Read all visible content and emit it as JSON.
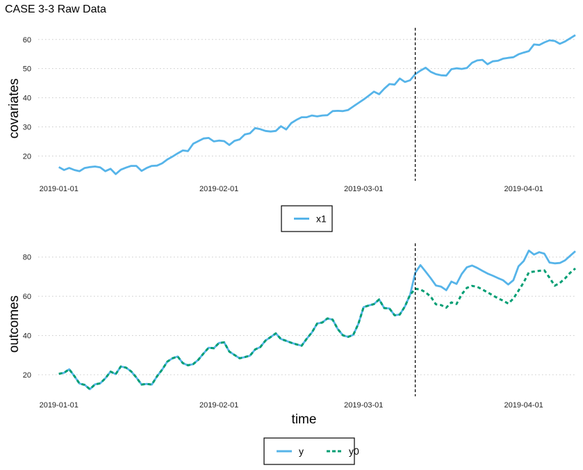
{
  "title": "CASE 3-3 Raw Data",
  "colors": {
    "x1": "#56B4E9",
    "y": "#56B4E9",
    "y0": "#009E73",
    "intervention": "#000000"
  },
  "chart_data": [
    {
      "type": "line",
      "ylabel": "covariates",
      "xlabel": "",
      "x_ticks": [
        "2019-01-01",
        "2019-02-01",
        "2019-03-01",
        "2019-04-01"
      ],
      "y_ticks": [
        20,
        30,
        40,
        50,
        60
      ],
      "ylim": [
        11.5,
        64
      ],
      "xlim": [
        "2018-12-28",
        "2019-04-11"
      ],
      "grid": "horizontal dotted",
      "intervention_date": "2019-03-11",
      "x": {
        "start": "2019-01-01",
        "end": "2019-04-09",
        "step_days": 1
      },
      "series": [
        {
          "name": "x1",
          "style": "solid",
          "values": [
            16.2,
            15.2,
            15.9,
            15.2,
            14.8,
            15.9,
            16.2,
            16.4,
            16.1,
            14.8,
            15.6,
            13.8,
            15.3,
            16.0,
            16.6,
            16.6,
            14.9,
            15.9,
            16.6,
            16.7,
            17.5,
            18.8,
            19.8,
            20.9,
            21.9,
            21.7,
            24.2,
            25.1,
            26.0,
            26.2,
            25.0,
            25.3,
            25.1,
            23.8,
            25.2,
            25.7,
            27.4,
            27.8,
            29.6,
            29.2,
            28.6,
            28.4,
            28.6,
            30.2,
            29.1,
            31.3,
            32.4,
            33.3,
            33.3,
            33.9,
            33.6,
            33.9,
            34.0,
            35.4,
            35.5,
            35.4,
            35.8,
            37.0,
            38.2,
            39.4,
            40.7,
            42.1,
            41.2,
            43.1,
            44.7,
            44.5,
            46.6,
            45.4,
            46.0,
            48.1,
            49.3,
            50.3,
            48.9,
            48.1,
            47.7,
            47.6,
            49.8,
            50.1,
            49.9,
            50.2,
            52.0,
            52.8,
            53.0,
            51.5,
            52.5,
            52.7,
            53.4,
            53.7,
            53.9,
            54.9,
            55.5,
            56.0,
            58.3,
            58.1,
            59.0,
            59.7,
            59.5,
            58.5,
            59.3,
            60.4,
            61.5
          ]
        }
      ]
    },
    {
      "type": "line",
      "ylabel": "outcomes",
      "xlabel": "time",
      "x_ticks": [
        "2019-01-01",
        "2019-02-01",
        "2019-03-01",
        "2019-04-01"
      ],
      "y_ticks": [
        20,
        40,
        60,
        80
      ],
      "ylim": [
        9,
        87
      ],
      "xlim": [
        "2018-12-28",
        "2019-04-11"
      ],
      "grid": "horizontal dotted",
      "intervention_date": "2019-03-11",
      "x": {
        "start": "2019-01-01",
        "end": "2019-04-09",
        "step_days": 1
      },
      "series": [
        {
          "name": "y",
          "style": "solid",
          "values": [
            20.5,
            21.0,
            22.8,
            19.3,
            15.5,
            14.8,
            12.6,
            15.1,
            15.6,
            18.2,
            21.6,
            20.3,
            24.2,
            23.6,
            21.7,
            18.6,
            15.0,
            15.3,
            15.0,
            19.2,
            22.6,
            26.7,
            28.4,
            29.3,
            25.9,
            24.8,
            25.4,
            27.6,
            30.8,
            33.8,
            33.5,
            36.2,
            36.5,
            31.8,
            30.1,
            28.4,
            29.0,
            29.7,
            32.9,
            34.1,
            37.4,
            39.2,
            41.1,
            38.2,
            37.3,
            36.3,
            35.5,
            34.8,
            38.4,
            41.6,
            46.1,
            46.6,
            48.7,
            48.1,
            43.3,
            40.1,
            39.3,
            40.3,
            46.0,
            54.5,
            55.3,
            56.0,
            58.4,
            54.0,
            53.8,
            50.3,
            50.7,
            54.8,
            60.8,
            72.0,
            75.9,
            72.6,
            69.2,
            65.5,
            64.9,
            63.1,
            67.5,
            66.3,
            71.4,
            74.8,
            75.7,
            74.5,
            73.0,
            71.6,
            70.5,
            69.3,
            68.2,
            66.0,
            68.2,
            75.3,
            78.0,
            83.3,
            81.3,
            82.5,
            81.7,
            77.2,
            76.8,
            77.0,
            78.3,
            80.7,
            83.0
          ]
        },
        {
          "name": "y0",
          "style": "dashed",
          "values": [
            20.5,
            21.0,
            22.8,
            19.3,
            15.5,
            14.8,
            12.6,
            15.1,
            15.6,
            18.2,
            21.6,
            20.3,
            24.2,
            23.6,
            21.7,
            18.6,
            15.0,
            15.3,
            15.0,
            19.2,
            22.6,
            26.7,
            28.4,
            29.3,
            25.9,
            24.8,
            25.4,
            27.6,
            30.8,
            33.8,
            33.5,
            36.2,
            36.5,
            31.8,
            30.1,
            28.4,
            29.0,
            29.7,
            32.9,
            34.1,
            37.4,
            39.2,
            41.1,
            38.2,
            37.3,
            36.3,
            35.5,
            34.8,
            38.4,
            41.6,
            46.1,
            46.6,
            48.7,
            48.1,
            43.3,
            40.1,
            39.3,
            40.3,
            46.0,
            54.5,
            55.3,
            56.0,
            58.4,
            54.0,
            53.8,
            50.3,
            50.7,
            54.8,
            60.8,
            63.8,
            63.5,
            62.0,
            59.8,
            55.9,
            55.5,
            54.2,
            56.9,
            56.1,
            61.0,
            64.3,
            65.3,
            64.8,
            63.5,
            62.0,
            60.5,
            59.0,
            57.8,
            56.3,
            58.8,
            62.9,
            67.1,
            72.2,
            72.6,
            73.0,
            73.2,
            69.5,
            65.4,
            66.8,
            69.1,
            72.0,
            74.2
          ]
        }
      ]
    }
  ],
  "legends": [
    {
      "items": [
        {
          "label": "x1"
        }
      ]
    },
    {
      "items": [
        {
          "label": "y"
        },
        {
          "label": "y0"
        }
      ]
    }
  ]
}
